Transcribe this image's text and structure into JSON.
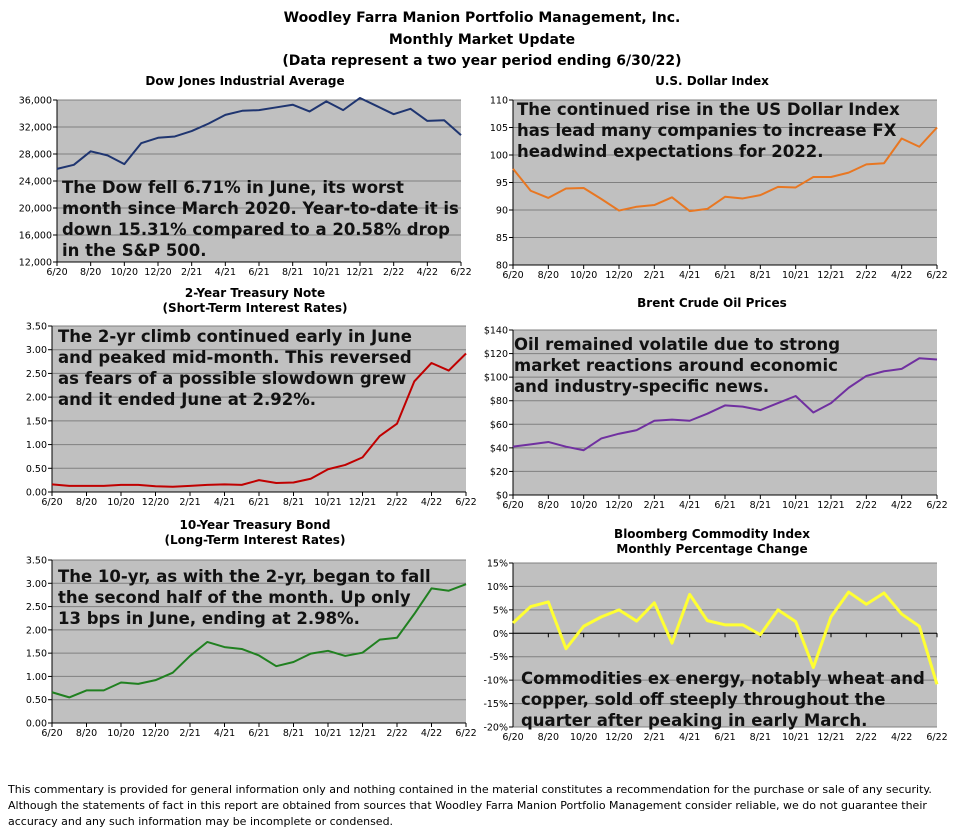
{
  "header": {
    "line1": "Woodley Farra Manion Portfolio Management, Inc.",
    "line2": "Monthly Market Update",
    "line3": "(Data represent a two year period ending 6/30/22)"
  },
  "footer": {
    "line1": "This commentary is provided for general information only and nothing contained in the material constitutes a recommendation for the purchase or sale of any security.",
    "line2": "Although the statements of fact in this report are obtained from sources that Woodley Farra Manion Portfolio Management consider reliable, we do not guarantee their",
    "line3": "accuracy and any such information may be incomplete or condensed."
  },
  "chart_data": [
    {
      "type": "line",
      "title": "Dow Jones Industrial Average",
      "color": "#1f3570",
      "ylim": [
        12000,
        36000
      ],
      "ystep": 4000,
      "yformat": "comma",
      "grid": true,
      "xticks": [
        "6/20",
        "8/20",
        "10/20",
        "12/20",
        "2/21",
        "4/21",
        "6/21",
        "8/21",
        "10/21",
        "12/21",
        "2/22",
        "4/22",
        "6/22"
      ],
      "values": [
        25800,
        26400,
        28400,
        27800,
        26500,
        29600,
        30400,
        30600,
        31400,
        32500,
        33800,
        34400,
        34500,
        34900,
        35300,
        34300,
        35800,
        34500,
        36300,
        35100,
        33900,
        34700,
        32900,
        33000,
        30800
      ],
      "annotation": [
        "The Dow fell 6.71% in June, its worst",
        "month since March 2020. Year-to-date it is",
        "down 15.31% compared to a 20.58% drop",
        "in the S&P 500."
      ]
    },
    {
      "type": "line",
      "title": "U.S. Dollar Index",
      "color": "#e87722",
      "ylim": [
        80,
        110
      ],
      "ystep": 5,
      "yformat": "int",
      "grid": true,
      "xticks": [
        "6/20",
        "8/20",
        "10/20",
        "12/20",
        "2/21",
        "4/21",
        "6/21",
        "8/21",
        "10/21",
        "12/21",
        "2/22",
        "4/22",
        "6/22"
      ],
      "values": [
        97.5,
        93.5,
        92.2,
        93.9,
        94,
        92,
        89.9,
        90.6,
        90.9,
        92.3,
        89.8,
        90.2,
        92.4,
        92.1,
        92.7,
        94.2,
        94.1,
        96,
        96,
        96.8,
        98.3,
        98.5,
        103,
        101.5,
        105
      ],
      "annotation": [
        "The continued rise in the US Dollar Index",
        "has lead many companies to increase FX",
        "headwind expectations for 2022."
      ]
    },
    {
      "type": "line",
      "title": "2-Year Treasury Note",
      "subtitle": "(Short-Term Interest Rates)",
      "color": "#c00000",
      "ylim": [
        0,
        3.5
      ],
      "ystep": 0.5,
      "yformat": "dec2",
      "grid": true,
      "xticks": [
        "6/20",
        "8/20",
        "10/20",
        "12/20",
        "2/21",
        "4/21",
        "6/21",
        "8/21",
        "10/21",
        "12/21",
        "2/22",
        "4/22",
        "6/22"
      ],
      "values": [
        0.16,
        0.13,
        0.13,
        0.13,
        0.15,
        0.15,
        0.12,
        0.11,
        0.13,
        0.15,
        0.16,
        0.15,
        0.25,
        0.19,
        0.2,
        0.28,
        0.48,
        0.57,
        0.73,
        1.18,
        1.44,
        2.33,
        2.72,
        2.56,
        2.92
      ],
      "annotation": [
        "The 2-yr climb continued early in June",
        "and peaked mid-month. This reversed",
        "as fears of a possible slowdown grew",
        "and it ended June at 2.92%."
      ]
    },
    {
      "type": "line",
      "title": "Brent Crude Oil Prices",
      "color": "#7030a0",
      "ylim": [
        0,
        140
      ],
      "ystep": 20,
      "yformat": "dollar",
      "grid": true,
      "xticks": [
        "6/20",
        "8/20",
        "10/20",
        "12/20",
        "2/21",
        "4/21",
        "6/21",
        "8/21",
        "10/21",
        "12/21",
        "2/22",
        "4/22",
        "6/22"
      ],
      "values": [
        41,
        43,
        45,
        41,
        38,
        48,
        52,
        55,
        63,
        64,
        63,
        69,
        76,
        75,
        72,
        78,
        84,
        70,
        78,
        91,
        101,
        105,
        107,
        116,
        115
      ],
      "annotation": [
        "Oil remained volatile due to strong",
        "market reactions around economic",
        "and industry-specific news."
      ]
    },
    {
      "type": "line",
      "title": "10-Year Treasury Bond",
      "subtitle": "(Long-Term Interest Rates)",
      "color": "#208020",
      "ylim": [
        0,
        3.5
      ],
      "ystep": 0.5,
      "yformat": "dec2",
      "grid": true,
      "xticks": [
        "6/20",
        "8/20",
        "10/20",
        "12/20",
        "2/21",
        "4/21",
        "6/21",
        "8/21",
        "10/21",
        "12/21",
        "2/22",
        "4/22",
        "6/22"
      ],
      "values": [
        0.66,
        0.55,
        0.7,
        0.7,
        0.87,
        0.84,
        0.92,
        1.08,
        1.44,
        1.74,
        1.63,
        1.59,
        1.45,
        1.22,
        1.31,
        1.49,
        1.55,
        1.44,
        1.51,
        1.79,
        1.83,
        2.34,
        2.89,
        2.84,
        2.98
      ],
      "annotation": [
        "The 10-yr, as with the 2-yr, began to fall",
        "the second half of the month. Up only",
        "13 bps in June, ending at 2.98%."
      ]
    },
    {
      "type": "line",
      "title": "Bloomberg Commodity Index",
      "subtitle": "Monthly Percentage Change",
      "color": "#ffff33",
      "ylim": [
        -20,
        15
      ],
      "ystep": 5,
      "yformat": "pct",
      "grid": true,
      "xticks": [
        "6/20",
        "8/20",
        "10/20",
        "12/20",
        "2/21",
        "4/21",
        "6/21",
        "8/21",
        "10/21",
        "12/21",
        "2/22",
        "4/22",
        "6/22"
      ],
      "values": [
        2.2,
        5.7,
        6.7,
        -3.3,
        1.5,
        3.5,
        5,
        2.6,
        6.5,
        -2.1,
        8.3,
        2.7,
        1.8,
        1.8,
        -0.3,
        5,
        2.5,
        -7.3,
        3.5,
        8.8,
        6.2,
        8.6,
        4.1,
        1.5,
        -10.9
      ],
      "annotation": [
        "Commodities ex energy, notably wheat and",
        "copper, sold off steeply throughout the",
        "quarter after peaking in early March."
      ]
    }
  ]
}
